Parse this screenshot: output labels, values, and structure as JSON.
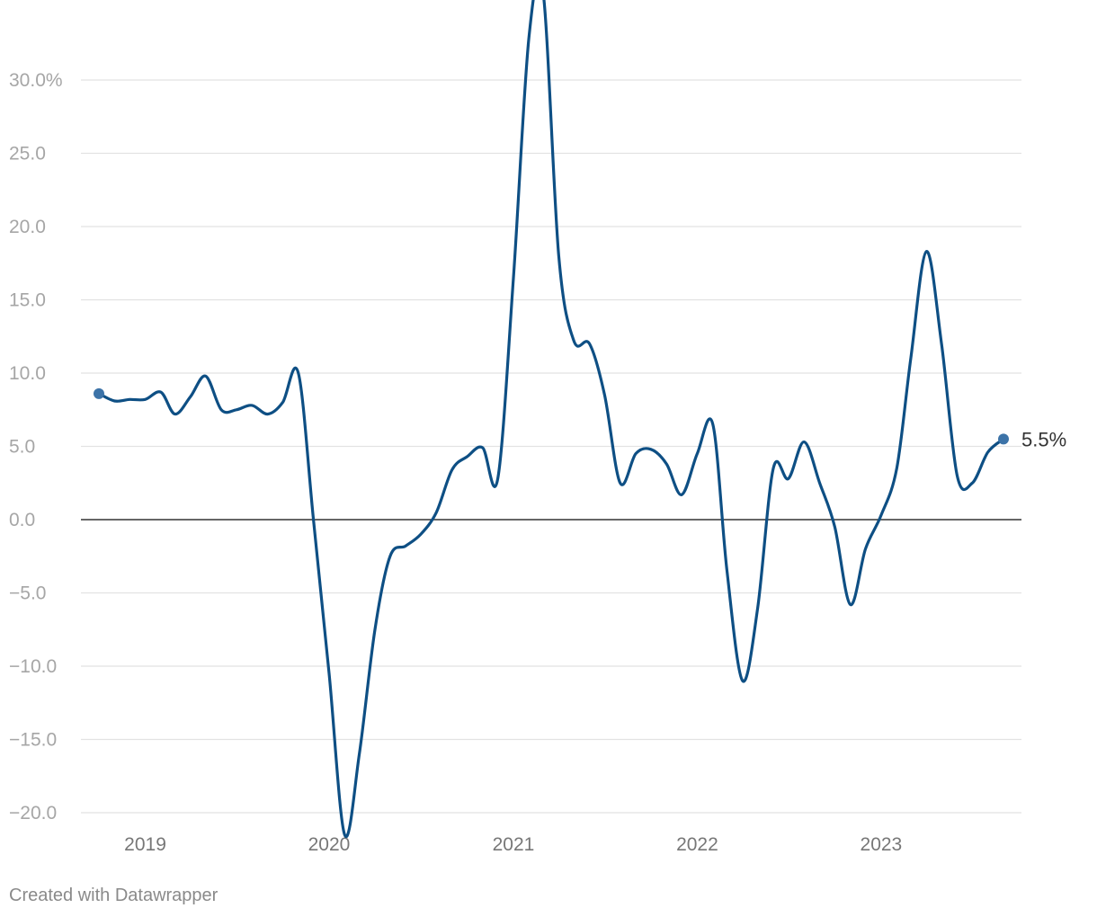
{
  "chart_data": {
    "type": "line",
    "title": "",
    "xlabel": "",
    "ylabel": "",
    "xlim": [
      "2018-10-01",
      "2023-09-01"
    ],
    "ylim": [
      -21.5,
      35
    ],
    "grid": "horizontal",
    "y_ticks": [
      {
        "value": 30,
        "label": "30.0%"
      },
      {
        "value": 25,
        "label": "25.0"
      },
      {
        "value": 20,
        "label": "20.0"
      },
      {
        "value": 15,
        "label": "15.0"
      },
      {
        "value": 10,
        "label": "10.0"
      },
      {
        "value": 5,
        "label": "5.0"
      },
      {
        "value": 0,
        "label": "0.0"
      },
      {
        "value": -5,
        "label": "−5.0"
      },
      {
        "value": -10,
        "label": "−10.0"
      },
      {
        "value": -15,
        "label": "−15.0"
      },
      {
        "value": -20,
        "label": "−20.0"
      }
    ],
    "x_ticks": [
      {
        "value": "2019-01-01",
        "label": "2019"
      },
      {
        "value": "2020-01-01",
        "label": "2020"
      },
      {
        "value": "2021-01-01",
        "label": "2021"
      },
      {
        "value": "2022-01-01",
        "label": "2022"
      },
      {
        "value": "2023-01-01",
        "label": "2023"
      }
    ],
    "series": [
      {
        "color": "#0e4f84",
        "end_label": "5.5%",
        "points": [
          {
            "x": "2018-10-01",
            "y": 8.6
          },
          {
            "x": "2018-11-01",
            "y": 8.1
          },
          {
            "x": "2018-12-01",
            "y": 8.2
          },
          {
            "x": "2019-01-01",
            "y": 8.2
          },
          {
            "x": "2019-02-01",
            "y": 8.7
          },
          {
            "x": "2019-03-01",
            "y": 7.2
          },
          {
            "x": "2019-04-01",
            "y": 8.4
          },
          {
            "x": "2019-05-01",
            "y": 9.8
          },
          {
            "x": "2019-06-01",
            "y": 7.5
          },
          {
            "x": "2019-07-01",
            "y": 7.5
          },
          {
            "x": "2019-08-01",
            "y": 7.8
          },
          {
            "x": "2019-09-01",
            "y": 7.2
          },
          {
            "x": "2019-10-01",
            "y": 8.0
          },
          {
            "x": "2019-11-01",
            "y": 10.0
          },
          {
            "x": "2019-12-01",
            "y": 0.0
          },
          {
            "x": "2020-01-01",
            "y": -10.5
          },
          {
            "x": "2020-02-01",
            "y": -21.5
          },
          {
            "x": "2020-03-01",
            "y": -16.0
          },
          {
            "x": "2020-04-01",
            "y": -7.5
          },
          {
            "x": "2020-05-01",
            "y": -2.5
          },
          {
            "x": "2020-06-01",
            "y": -1.8
          },
          {
            "x": "2020-07-01",
            "y": -1.0
          },
          {
            "x": "2020-08-01",
            "y": 0.5
          },
          {
            "x": "2020-09-01",
            "y": 3.4
          },
          {
            "x": "2020-10-01",
            "y": 4.3
          },
          {
            "x": "2020-11-01",
            "y": 4.9
          },
          {
            "x": "2020-12-01",
            "y": 2.8
          },
          {
            "x": "2021-01-01",
            "y": 16.5
          },
          {
            "x": "2021-02-01",
            "y": 33.0
          },
          {
            "x": "2021-03-01",
            "y": 36.0
          },
          {
            "x": "2021-04-01",
            "y": 18.0
          },
          {
            "x": "2021-05-01",
            "y": 12.2
          },
          {
            "x": "2021-06-01",
            "y": 12.0
          },
          {
            "x": "2021-07-01",
            "y": 8.5
          },
          {
            "x": "2021-08-01",
            "y": 2.5
          },
          {
            "x": "2021-09-01",
            "y": 4.5
          },
          {
            "x": "2021-10-01",
            "y": 4.8
          },
          {
            "x": "2021-11-01",
            "y": 3.8
          },
          {
            "x": "2021-12-01",
            "y": 1.7
          },
          {
            "x": "2022-01-01",
            "y": 4.5
          },
          {
            "x": "2022-02-01",
            "y": 6.5
          },
          {
            "x": "2022-03-01",
            "y": -3.5
          },
          {
            "x": "2022-04-01",
            "y": -11.0
          },
          {
            "x": "2022-05-01",
            "y": -6.0
          },
          {
            "x": "2022-06-01",
            "y": 3.5
          },
          {
            "x": "2022-07-01",
            "y": 2.8
          },
          {
            "x": "2022-08-01",
            "y": 5.3
          },
          {
            "x": "2022-09-01",
            "y": 2.5
          },
          {
            "x": "2022-10-01",
            "y": -0.5
          },
          {
            "x": "2022-11-01",
            "y": -5.8
          },
          {
            "x": "2022-12-01",
            "y": -2.0
          },
          {
            "x": "2023-01-01",
            "y": 0.3
          },
          {
            "x": "2023-02-01",
            "y": 3.5
          },
          {
            "x": "2023-03-01",
            "y": 11.0
          },
          {
            "x": "2023-04-01",
            "y": 18.3
          },
          {
            "x": "2023-05-01",
            "y": 12.0
          },
          {
            "x": "2023-06-01",
            "y": 3.0
          },
          {
            "x": "2023-07-01",
            "y": 2.5
          },
          {
            "x": "2023-08-01",
            "y": 4.6
          },
          {
            "x": "2023-09-01",
            "y": 5.5
          }
        ]
      }
    ]
  },
  "footer": {
    "credit": "Created with Datawrapper"
  }
}
